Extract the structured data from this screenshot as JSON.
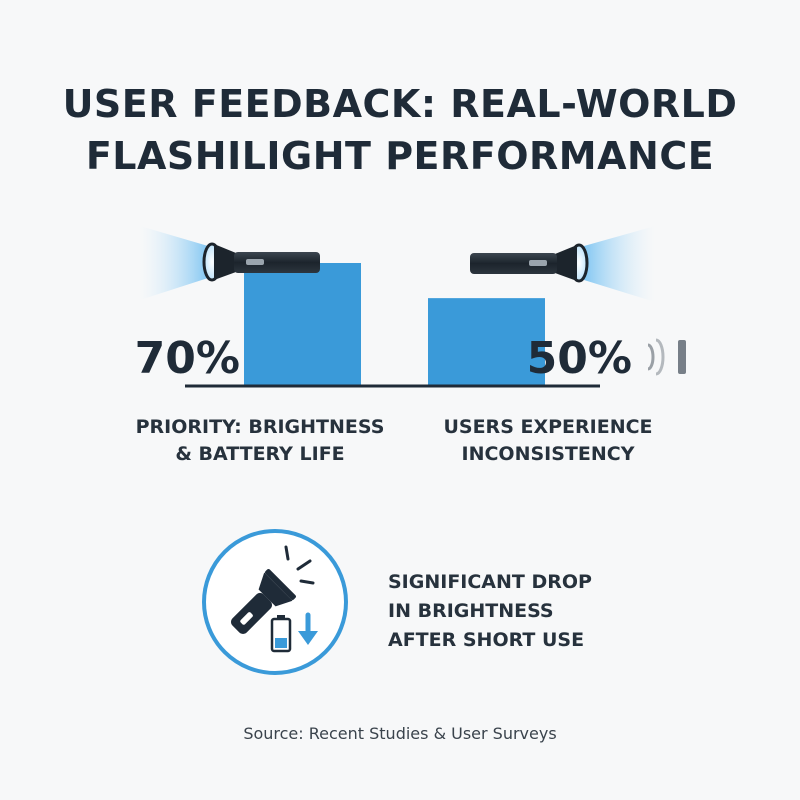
{
  "title": {
    "line1": "USER FEEDBACK: REAL-WORLD",
    "line2": "FLASHILIGHT PERFORMANCE"
  },
  "chart_data": {
    "type": "bar",
    "categories": [
      "PRIORITY: BRIGHTNESS & BATTERY LIFE",
      "USERS EXPERIENCE INCONSISTENCY"
    ],
    "values": [
      70,
      50
    ],
    "value_labels": [
      "70%",
      "50%"
    ],
    "unit": "%",
    "bar_color": "#3a9ad9",
    "grid": false,
    "legend": "none"
  },
  "captions": {
    "left": {
      "line1": "PRIORITY: BRIGHTNESS",
      "line2": "& BATTERY LIFE"
    },
    "right": {
      "line1": "USERS EXPERIENCE",
      "line2": "INCONSISTENCY"
    }
  },
  "callout": {
    "line1": "SIGNIFICANT DROP",
    "line2": "IN BRIGHTNESS",
    "line3": "AFTER SHORT USE",
    "icon": "flashlight-battery-drop-icon"
  },
  "source": "Source: Recent Studies & User Surveys",
  "colors": {
    "accent": "#3a9ad9",
    "text": "#1f2b38",
    "background": "#f7f8f9"
  }
}
